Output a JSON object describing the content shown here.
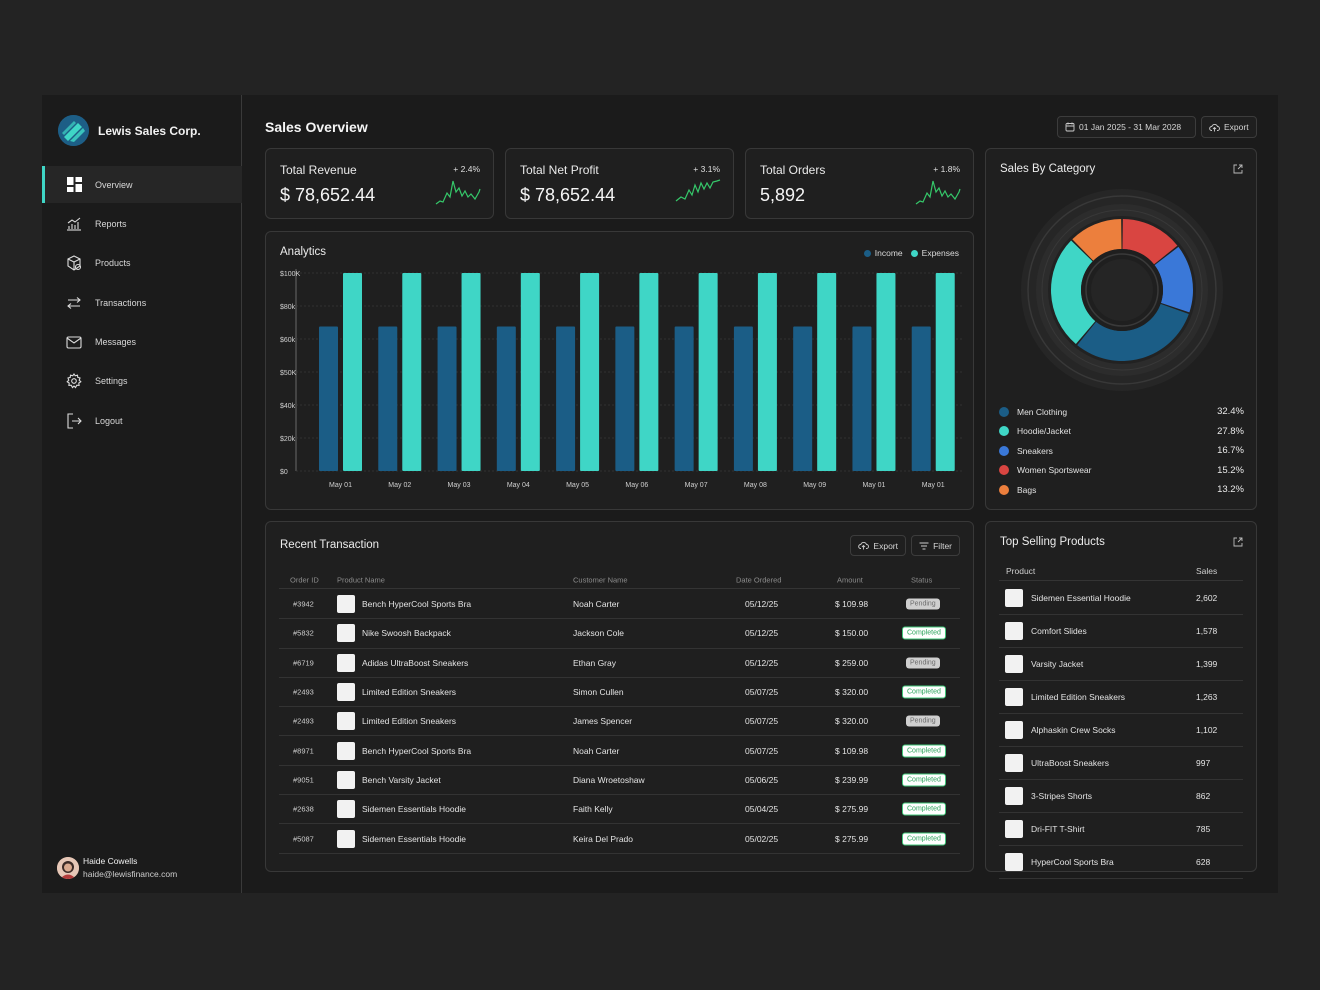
{
  "brand": {
    "name": "Lewis Sales Corp."
  },
  "nav": [
    {
      "label": "Overview",
      "icon": "grid-icon",
      "active": true
    },
    {
      "label": "Reports",
      "icon": "chart-icon",
      "active": false
    },
    {
      "label": "Products",
      "icon": "box-icon",
      "active": false
    },
    {
      "label": "Transactions",
      "icon": "transfer-icon",
      "active": false
    },
    {
      "label": "Messages",
      "icon": "mail-icon",
      "active": false
    },
    {
      "label": "Settings",
      "icon": "gear-icon",
      "active": false
    },
    {
      "label": "Logout",
      "icon": "logout-icon",
      "active": false
    }
  ],
  "user": {
    "name": "Haide Cowells",
    "email": "haide@lewisfinance.com"
  },
  "header": {
    "title": "Sales Overview",
    "date_range": "01 Jan 2025 - 31 Mar 2028",
    "export_label": "Export"
  },
  "kpis": [
    {
      "title": "Total Revenue",
      "value": "$ 78,652.44",
      "change": "+ 2.4%"
    },
    {
      "title": "Total Net Profit",
      "value": "$ 78,652.44",
      "change": "+ 3.1%"
    },
    {
      "title": "Total Orders",
      "value": "5,892",
      "change": "+ 1.8%"
    }
  ],
  "analytics": {
    "title": "Analytics",
    "legend_income": "Income",
    "legend_expenses": "Expenses",
    "colors": {
      "income": "#1b5d86",
      "expenses": "#3fd6c6"
    }
  },
  "chart_data": {
    "type": "bar",
    "categories": [
      "May 01",
      "May 02",
      "May 03",
      "May 04",
      "May 05",
      "May 06",
      "May 07",
      "May 08",
      "May 09",
      "May 01",
      "May 01"
    ],
    "yticks": [
      "$0",
      "$20k",
      "$40k",
      "$50K",
      "$60k",
      "$80k",
      "$100K"
    ],
    "ylim": [
      0,
      100
    ],
    "series": [
      {
        "name": "Income",
        "values": [
          73,
          73,
          73,
          73,
          73,
          73,
          73,
          73,
          73,
          73,
          73
        ]
      },
      {
        "name": "Expenses",
        "values": [
          100,
          100,
          100,
          100,
          100,
          100,
          100,
          100,
          100,
          100,
          100
        ]
      }
    ]
  },
  "category": {
    "title": "Sales By Category",
    "items": [
      {
        "label": "Men Clothing",
        "pct": "32.4%",
        "value": 32.4,
        "color": "#1b5d86"
      },
      {
        "label": "Hoodie/Jacket",
        "pct": "27.8%",
        "value": 27.8,
        "color": "#3fd6c6"
      },
      {
        "label": "Sneakers",
        "pct": "16.7%",
        "value": 16.7,
        "color": "#3a78d8"
      },
      {
        "label": "Women Sportswear",
        "pct": "15.2%",
        "value": 15.2,
        "color": "#d94541"
      },
      {
        "label": "Bags",
        "pct": "13.2%",
        "value": 13.2,
        "color": "#ec7f3d"
      }
    ]
  },
  "transactions": {
    "title": "Recent Transaction",
    "export_label": "Export",
    "filter_label": "Filter",
    "columns": [
      "Order ID",
      "Product Name",
      "Customer Name",
      "Date Ordered",
      "Amount",
      "Status"
    ],
    "rows": [
      {
        "id": "#3942",
        "product": "Bench HyperCool Sports Bra",
        "customer": "Noah Carter",
        "date": "05/12/25",
        "amount": "$ 109.98",
        "status": "Pending"
      },
      {
        "id": "#5832",
        "product": "Nike Swoosh Backpack",
        "customer": "Jackson Cole",
        "date": "05/12/25",
        "amount": "$ 150.00",
        "status": "Completed"
      },
      {
        "id": "#6719",
        "product": "Adidas UltraBoost Sneakers",
        "customer": "Ethan Gray",
        "date": "05/12/25",
        "amount": "$ 259.00",
        "status": "Pending"
      },
      {
        "id": "#2493",
        "product": "Limited Edition Sneakers",
        "customer": "Simon Cullen",
        "date": "05/07/25",
        "amount": "$ 320.00",
        "status": "Completed"
      },
      {
        "id": "#2493",
        "product": "Limited Edition Sneakers",
        "customer": "James Spencer",
        "date": "05/07/25",
        "amount": "$ 320.00",
        "status": "Pending"
      },
      {
        "id": "#8971",
        "product": "Bench HyperCool Sports Bra",
        "customer": "Noah Carter",
        "date": "05/07/25",
        "amount": "$ 109.98",
        "status": "Completed"
      },
      {
        "id": "#9051",
        "product": "Bench Varsity Jacket",
        "customer": "Diana Wroetoshaw",
        "date": "05/06/25",
        "amount": "$ 239.99",
        "status": "Completed"
      },
      {
        "id": "#2638",
        "product": "Sidemen Essentials Hoodie",
        "customer": "Faith Kelly",
        "date": "05/04/25",
        "amount": "$ 275.99",
        "status": "Completed"
      },
      {
        "id": "#5087",
        "product": "Sidemen Essentials Hoodie",
        "customer": "Keira Del Prado",
        "date": "05/02/25",
        "amount": "$ 275.99",
        "status": "Completed"
      }
    ]
  },
  "top_selling": {
    "title": "Top Selling Products",
    "columns": [
      "Product",
      "Sales"
    ],
    "rows": [
      {
        "product": "Sidemen Essential Hoodie",
        "sales": "2,602"
      },
      {
        "product": "Comfort Slides",
        "sales": "1,578"
      },
      {
        "product": "Varsity Jacket",
        "sales": "1,399"
      },
      {
        "product": "Limited Edition Sneakers",
        "sales": "1,263"
      },
      {
        "product": "Alphaskin Crew Socks",
        "sales": "1,102"
      },
      {
        "product": "UltraBoost Sneakers",
        "sales": "997"
      },
      {
        "product": "3-Stripes Shorts",
        "sales": "862"
      },
      {
        "product": "Dri-FIT T-Shirt",
        "sales": "785"
      },
      {
        "product": "HyperCool Sports Bra",
        "sales": "628"
      }
    ]
  }
}
